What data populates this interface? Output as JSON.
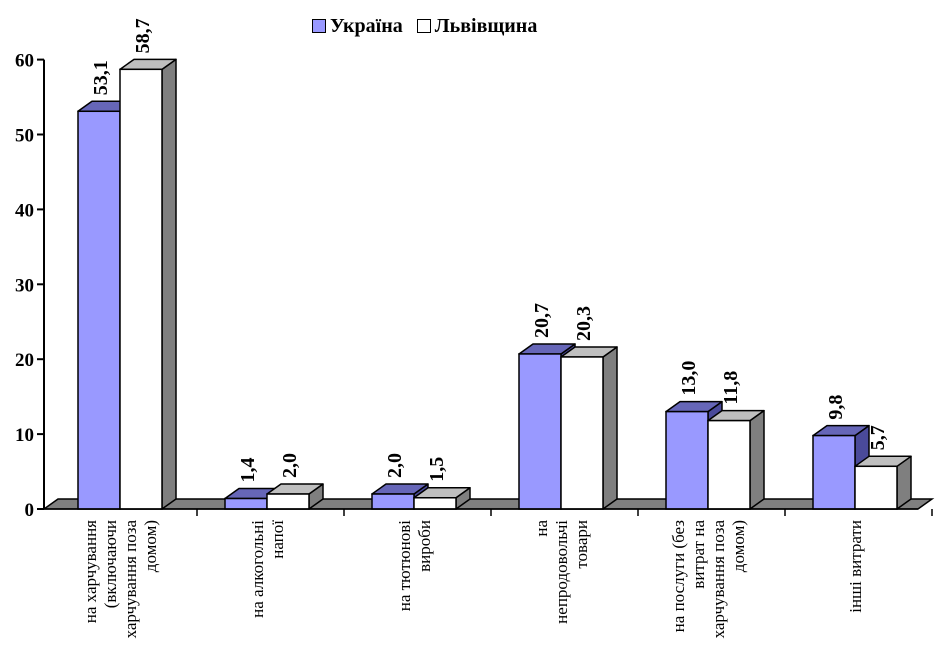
{
  "colors": {
    "series_ukraine": "#9999ff",
    "series_ukraine_side": "#4a4a9a",
    "series_ukraine_top": "#6666b8",
    "series_lviv": "#ffffff",
    "series_lviv_side": "#7f7f7f",
    "series_lviv_top": "#bfbfbf",
    "floor": "#808080",
    "outline": "#000000"
  },
  "chart_data": {
    "type": "bar",
    "style": "3d-clustered-column",
    "title": "",
    "xlabel": "",
    "ylabel": "",
    "ylim": [
      0,
      60
    ],
    "y_ticks": [
      "0",
      "10",
      "20",
      "30",
      "40",
      "50",
      "60"
    ],
    "grid": false,
    "legend_position": "top-center",
    "categories": [
      [
        "на харчування",
        "(включаючи",
        "харчування поза",
        "домом)"
      ],
      [
        "на алкогольні",
        "напої"
      ],
      [
        "на тютюнові",
        "вироби"
      ],
      [
        "на",
        "непродовольчі",
        "товари"
      ],
      [
        "на послуги (без",
        "витрат на",
        "харчування поза",
        "домом)"
      ],
      [
        "інші витрати"
      ]
    ],
    "series": [
      {
        "name": "Україна",
        "values": [
          53.1,
          1.4,
          2.0,
          20.7,
          13.0,
          9.8
        ],
        "labels": [
          "53,1",
          "1,4",
          "2,0",
          "20,7",
          "13,0",
          "9,8"
        ]
      },
      {
        "name": "Львівщина",
        "values": [
          58.7,
          2.0,
          1.5,
          20.3,
          11.8,
          5.7
        ],
        "labels": [
          "58,7",
          "2,0",
          "1,5",
          "20,3",
          "11,8",
          "5,7"
        ]
      }
    ]
  }
}
